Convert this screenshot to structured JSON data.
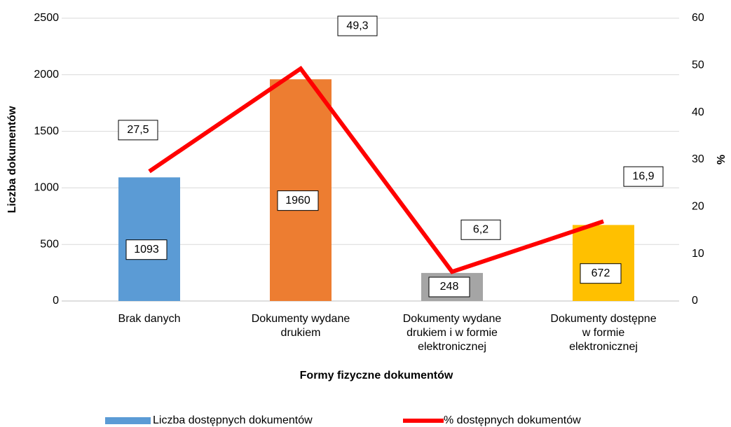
{
  "chart_data": {
    "type": "bar_line",
    "categories": [
      "Brak danych",
      "Dokumenty wydane\ndrukiem",
      "Dokumenty wydane\ndrukiem i w formie\nelektronicznej",
      "Dokumenty dostępne\nw formie\nelektronicznej"
    ],
    "x_label": "Formy fizyczne dokumentów",
    "y_label": "Liczba dokumentów",
    "y2_label": "%",
    "ylim": [
      0,
      2500
    ],
    "yticks": [
      0,
      500,
      1000,
      1500,
      2000,
      2500
    ],
    "y2lim": [
      0,
      60
    ],
    "y2ticks": [
      0,
      10,
      20,
      30,
      40,
      50,
      60
    ],
    "grid": true,
    "legend": "bottom",
    "series": [
      {
        "name": "Liczba dostępnych dokumentów",
        "type": "bar",
        "color": "#5b9bd5",
        "colors": [
          "#5b9bd5",
          "#ed7d31",
          "#a5a5a5",
          "#ffc000"
        ],
        "values": [
          1093,
          1960,
          248,
          672
        ]
      },
      {
        "name": "% dostępnych dokumentów",
        "type": "line",
        "axis": "y2",
        "color": "#ff0000",
        "values": [
          27.5,
          49.3,
          6.2,
          16.9
        ],
        "value_labels": [
          "27,5",
          "49,3",
          "6,2",
          "16,9"
        ]
      }
    ]
  }
}
